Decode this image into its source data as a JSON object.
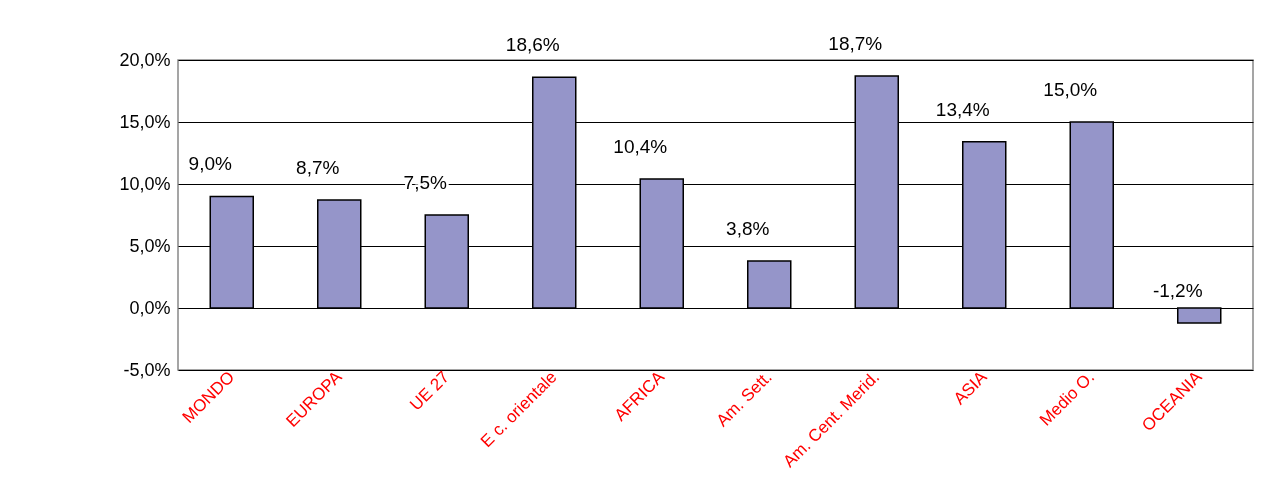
{
  "chart_data": {
    "type": "bar",
    "categories": [
      "MONDO",
      "EUROPA",
      "UE 27",
      "E c. orientale",
      "AFRICA",
      "Am. Sett.",
      "Am. Cent. Merid.",
      "ASIA",
      "Medio O.",
      "OCEANIA"
    ],
    "values": [
      9.0,
      8.7,
      7.5,
      18.6,
      10.4,
      3.8,
      18.7,
      13.4,
      15.0,
      -1.2
    ],
    "value_labels": [
      "9,0%",
      "8,7%",
      "7,5%",
      "18,6%",
      "10,4%",
      "3,8%",
      "18,7%",
      "13,4%",
      "15,0%",
      "-1,2%"
    ],
    "color": "#9595c9",
    "ylim": [
      -5,
      20
    ],
    "yticks": [
      {
        "value": -5,
        "label": "-5,0%"
      },
      {
        "value": 0,
        "label": "0,0%"
      },
      {
        "value": 5,
        "label": "5,0%"
      },
      {
        "value": 10,
        "label": "10,0%"
      },
      {
        "value": 15,
        "label": "15,0%"
      },
      {
        "value": 20,
        "label": "20,0%"
      }
    ],
    "grid": "y"
  }
}
